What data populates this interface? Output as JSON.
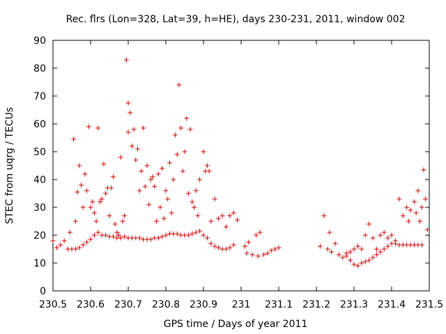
{
  "chart_data": {
    "type": "scatter",
    "title": "Rec. flrs (Lon=328, Lat=39, h=HE), days 230-231, 2011, window 002",
    "xlabel": "GPS time / Days of year 2011",
    "ylabel": "STEC from uqrg / TECUs",
    "xlim": [
      230.5,
      231.5
    ],
    "ylim": [
      0,
      90
    ],
    "grid": false,
    "legend": "none",
    "marker": "+",
    "marker_color": "#cc0000",
    "x_ticks": [
      "230.5",
      "230.6",
      "230.7",
      "230.8",
      "230.9",
      "231",
      "231.1",
      "231.2",
      "231.3",
      "231.4",
      "231.5"
    ],
    "y_ticks": [
      "0",
      "10",
      "20",
      "30",
      "40",
      "50",
      "60",
      "70",
      "80",
      "90"
    ],
    "series": [
      {
        "name": "STEC",
        "points": [
          [
            230.5,
            18
          ],
          [
            230.51,
            15.5
          ],
          [
            230.52,
            16.5
          ],
          [
            230.53,
            18
          ],
          [
            230.54,
            15
          ],
          [
            230.545,
            21
          ],
          [
            230.55,
            15
          ],
          [
            230.56,
            15
          ],
          [
            230.57,
            15.5
          ],
          [
            230.58,
            16.5
          ],
          [
            230.59,
            17.5
          ],
          [
            230.6,
            18.5
          ],
          [
            230.61,
            20
          ],
          [
            230.62,
            21
          ],
          [
            230.63,
            20
          ],
          [
            230.64,
            20
          ],
          [
            230.65,
            19.5
          ],
          [
            230.66,
            19.5
          ],
          [
            230.67,
            19
          ],
          [
            230.68,
            19
          ],
          [
            230.69,
            19.5
          ],
          [
            230.7,
            19
          ],
          [
            230.71,
            19
          ],
          [
            230.72,
            19
          ],
          [
            230.73,
            19
          ],
          [
            230.74,
            18.5
          ],
          [
            230.75,
            18.5
          ],
          [
            230.76,
            18.5
          ],
          [
            230.77,
            19
          ],
          [
            230.78,
            19
          ],
          [
            230.79,
            19.5
          ],
          [
            230.8,
            20
          ],
          [
            230.81,
            20.5
          ],
          [
            230.82,
            20.5
          ],
          [
            230.83,
            20.5
          ],
          [
            230.84,
            20
          ],
          [
            230.85,
            20
          ],
          [
            230.86,
            20
          ],
          [
            230.87,
            20.5
          ],
          [
            230.88,
            21
          ],
          [
            230.89,
            21.5
          ],
          [
            230.9,
            20
          ],
          [
            230.91,
            19
          ],
          [
            230.92,
            17
          ],
          [
            230.93,
            16
          ],
          [
            230.94,
            15.5
          ],
          [
            230.95,
            15
          ],
          [
            230.96,
            15
          ],
          [
            230.97,
            15.5
          ],
          [
            230.98,
            16.5
          ],
          [
            230.555,
            54.5
          ],
          [
            230.56,
            25
          ],
          [
            230.565,
            35.5
          ],
          [
            230.57,
            45
          ],
          [
            230.575,
            38
          ],
          [
            230.58,
            30
          ],
          [
            230.585,
            42
          ],
          [
            230.59,
            36
          ],
          [
            230.595,
            59
          ],
          [
            230.6,
            30
          ],
          [
            230.605,
            32
          ],
          [
            230.61,
            28
          ],
          [
            230.615,
            25
          ],
          [
            230.62,
            58.5
          ],
          [
            230.625,
            32
          ],
          [
            230.63,
            33
          ],
          [
            230.635,
            45.5
          ],
          [
            230.64,
            35
          ],
          [
            230.645,
            37
          ],
          [
            230.65,
            27
          ],
          [
            230.655,
            37
          ],
          [
            230.66,
            41
          ],
          [
            230.665,
            24
          ],
          [
            230.67,
            21
          ],
          [
            230.675,
            20
          ],
          [
            230.68,
            48
          ],
          [
            230.685,
            25
          ],
          [
            230.69,
            27
          ],
          [
            230.695,
            83
          ],
          [
            230.7,
            67.5
          ],
          [
            230.7,
            57
          ],
          [
            230.705,
            64
          ],
          [
            230.71,
            52
          ],
          [
            230.715,
            58
          ],
          [
            230.72,
            47
          ],
          [
            230.725,
            51
          ],
          [
            230.73,
            36
          ],
          [
            230.735,
            43
          ],
          [
            230.74,
            58.5
          ],
          [
            230.745,
            37.5
          ],
          [
            230.75,
            45
          ],
          [
            230.755,
            31
          ],
          [
            230.76,
            40
          ],
          [
            230.765,
            41
          ],
          [
            230.77,
            37.5
          ],
          [
            230.775,
            25
          ],
          [
            230.78,
            42
          ],
          [
            230.785,
            30
          ],
          [
            230.79,
            44
          ],
          [
            230.795,
            26
          ],
          [
            230.8,
            36
          ],
          [
            230.805,
            33
          ],
          [
            230.81,
            46
          ],
          [
            230.815,
            28
          ],
          [
            230.82,
            40
          ],
          [
            230.825,
            56
          ],
          [
            230.83,
            49
          ],
          [
            230.835,
            74
          ],
          [
            230.84,
            58.5
          ],
          [
            230.845,
            43
          ],
          [
            230.85,
            50
          ],
          [
            230.855,
            62
          ],
          [
            230.86,
            35
          ],
          [
            230.865,
            58
          ],
          [
            230.87,
            32
          ],
          [
            230.875,
            30
          ],
          [
            230.88,
            36
          ],
          [
            230.885,
            27
          ],
          [
            230.89,
            40
          ],
          [
            230.9,
            50
          ],
          [
            230.905,
            43
          ],
          [
            230.91,
            45
          ],
          [
            230.915,
            43
          ],
          [
            230.92,
            25
          ],
          [
            230.93,
            33
          ],
          [
            230.94,
            26
          ],
          [
            230.95,
            27
          ],
          [
            230.96,
            23
          ],
          [
            230.97,
            27
          ],
          [
            230.98,
            28
          ],
          [
            230.99,
            25.5
          ],
          [
            231.01,
            16
          ],
          [
            231.015,
            13.5
          ],
          [
            231.02,
            17.5
          ],
          [
            231.03,
            13
          ],
          [
            231.04,
            20
          ],
          [
            231.045,
            12.5
          ],
          [
            231.05,
            21
          ],
          [
            231.06,
            13
          ],
          [
            231.07,
            13.5
          ],
          [
            231.08,
            14.5
          ],
          [
            231.09,
            15
          ],
          [
            231.1,
            15.5
          ],
          [
            231.21,
            16
          ],
          [
            231.22,
            27
          ],
          [
            231.23,
            15
          ],
          [
            231.235,
            21
          ],
          [
            231.24,
            14
          ],
          [
            231.25,
            17
          ],
          [
            231.26,
            13
          ],
          [
            231.27,
            12
          ],
          [
            231.28,
            12.5
          ],
          [
            231.29,
            11
          ],
          [
            231.3,
            9.5
          ],
          [
            231.31,
            9
          ],
          [
            231.32,
            10
          ],
          [
            231.33,
            10.5
          ],
          [
            231.34,
            11
          ],
          [
            231.35,
            12
          ],
          [
            231.36,
            13
          ],
          [
            231.37,
            14
          ],
          [
            231.38,
            15
          ],
          [
            231.39,
            16
          ],
          [
            231.4,
            17
          ],
          [
            231.41,
            17
          ],
          [
            231.42,
            16.5
          ],
          [
            231.43,
            16.5
          ],
          [
            231.44,
            16.5
          ],
          [
            231.45,
            16.5
          ],
          [
            231.46,
            16.5
          ],
          [
            231.47,
            16.5
          ],
          [
            231.48,
            16.5
          ],
          [
            231.28,
            13.5
          ],
          [
            231.29,
            14
          ],
          [
            231.3,
            15
          ],
          [
            231.31,
            16
          ],
          [
            231.32,
            15
          ],
          [
            231.33,
            20
          ],
          [
            231.34,
            24
          ],
          [
            231.35,
            19
          ],
          [
            231.36,
            15
          ],
          [
            231.37,
            20
          ],
          [
            231.38,
            21
          ],
          [
            231.39,
            19
          ],
          [
            231.4,
            20
          ],
          [
            231.41,
            18
          ],
          [
            231.42,
            33
          ],
          [
            231.43,
            27
          ],
          [
            231.44,
            30
          ],
          [
            231.445,
            25
          ],
          [
            231.45,
            29
          ],
          [
            231.46,
            32
          ],
          [
            231.465,
            28
          ],
          [
            231.47,
            36
          ],
          [
            231.475,
            25
          ],
          [
            231.48,
            30
          ],
          [
            231.485,
            43.5
          ],
          [
            231.49,
            33
          ],
          [
            231.495,
            22
          ]
        ]
      }
    ]
  }
}
